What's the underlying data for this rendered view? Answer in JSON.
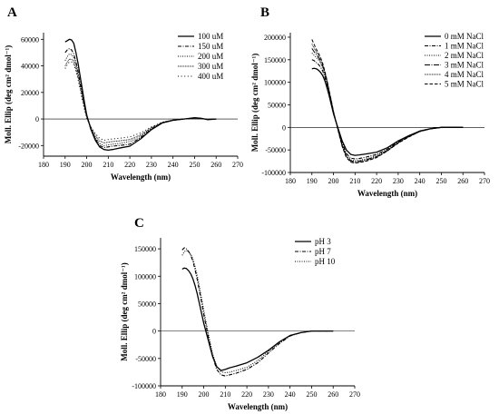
{
  "chart_data": [
    {
      "panel": "A",
      "type": "line",
      "xlabel": "Wavelength (nm)",
      "ylabel": "Moll. Ellip (deg cm² dmol⁻¹)",
      "xlim": [
        180,
        270
      ],
      "ylim": [
        -28000,
        65000
      ],
      "xticks": [
        180,
        190,
        200,
        210,
        220,
        230,
        240,
        250,
        260,
        270
      ],
      "yticks": [
        -20000,
        0,
        20000,
        40000,
        60000
      ],
      "legend_position": "top-right",
      "series": [
        {
          "name": "100 uM",
          "style": "solid",
          "x": [
            190,
            191,
            192,
            193,
            194,
            195,
            196,
            197,
            198,
            199,
            200,
            202,
            204,
            206,
            208,
            210,
            212,
            215,
            220,
            225,
            230,
            235,
            240,
            245,
            250,
            253,
            256,
            260
          ],
          "y": [
            58000,
            59000,
            60000,
            59500,
            57000,
            50000,
            42000,
            32000,
            22000,
            12000,
            3000,
            -8000,
            -16000,
            -21000,
            -23000,
            -23500,
            -23000,
            -22000,
            -20500,
            -15000,
            -8000,
            -3000,
            -1000,
            0,
            1000,
            500,
            -500,
            0
          ]
        },
        {
          "name": "150 uM",
          "style": "dashdot",
          "x": [
            190,
            191,
            192,
            193,
            194,
            195,
            196,
            197,
            198,
            199,
            200,
            202,
            204,
            206,
            208,
            210,
            212,
            215,
            220,
            225,
            230,
            235,
            240,
            245,
            250,
            253,
            256,
            260
          ],
          "y": [
            50000,
            52000,
            53000,
            52000,
            49000,
            43000,
            36000,
            27000,
            19000,
            10000,
            2000,
            -8000,
            -15000,
            -20000,
            -21500,
            -21000,
            -20500,
            -20000,
            -19000,
            -14000,
            -7500,
            -3000,
            -1000,
            0,
            700,
            400,
            -300,
            0
          ]
        },
        {
          "name": "200 uM",
          "style": "dotted",
          "x": [
            190,
            191,
            192,
            193,
            194,
            195,
            196,
            197,
            198,
            199,
            200,
            202,
            204,
            206,
            208,
            210,
            212,
            215,
            220,
            225,
            230,
            235,
            240,
            245,
            250,
            253,
            256,
            260
          ],
          "y": [
            44000,
            47000,
            49000,
            48500,
            46000,
            41000,
            34000,
            26000,
            18000,
            9500,
            2000,
            -7000,
            -14000,
            -18500,
            -20000,
            -19500,
            -19000,
            -18500,
            -17000,
            -13000,
            -7000,
            -3000,
            -1000,
            0,
            600,
            300,
            -300,
            0
          ]
        },
        {
          "name": "300 uM",
          "style": "densedot",
          "x": [
            190,
            191,
            192,
            193,
            194,
            195,
            196,
            197,
            198,
            199,
            200,
            202,
            204,
            206,
            208,
            210,
            212,
            215,
            220,
            225,
            230,
            235,
            240,
            245,
            250,
            253,
            256,
            260
          ],
          "y": [
            40000,
            43000,
            45000,
            45000,
            43000,
            38000,
            32000,
            24000,
            16000,
            8500,
            1500,
            -6500,
            -12500,
            -16500,
            -18000,
            -17500,
            -17000,
            -16500,
            -15500,
            -12000,
            -6500,
            -2500,
            -800,
            0,
            500,
            300,
            -200,
            0
          ]
        },
        {
          "name": "400 uM",
          "style": "sparsedot",
          "x": [
            190,
            191,
            192,
            193,
            194,
            195,
            196,
            197,
            198,
            199,
            200,
            202,
            204,
            206,
            208,
            210,
            212,
            215,
            220,
            225,
            230,
            235,
            240,
            245,
            250,
            253,
            256,
            260
          ],
          "y": [
            38000,
            41000,
            43000,
            43000,
            41000,
            36000,
            30000,
            22000,
            14000,
            7000,
            500,
            -6000,
            -11000,
            -14500,
            -16000,
            -15500,
            -15000,
            -14500,
            -13500,
            -10500,
            -6000,
            -2500,
            -800,
            0,
            400,
            200,
            -200,
            0
          ]
        }
      ]
    },
    {
      "panel": "B",
      "type": "line",
      "xlabel": "Wavelength (nm)",
      "ylabel": "Moll. Ellip (deg cm² dmol⁻¹)",
      "xlim": [
        180,
        270
      ],
      "ylim": [
        -100000,
        210000
      ],
      "xticks": [
        180,
        190,
        200,
        210,
        220,
        230,
        240,
        250,
        260,
        270
      ],
      "yticks": [
        -100000,
        -50000,
        0,
        50000,
        100000,
        150000,
        200000
      ],
      "legend_position": "top-right",
      "series": [
        {
          "name": "0 mM NaCl",
          "style": "solid",
          "x": [
            190,
            191,
            192,
            193,
            194,
            195,
            196,
            197,
            198,
            199,
            200,
            202,
            204,
            206,
            208,
            210,
            212,
            215,
            220,
            225,
            230,
            235,
            240,
            245,
            250,
            255,
            260
          ],
          "y": [
            130000,
            131000,
            130000,
            127000,
            122000,
            115000,
            104000,
            88000,
            70000,
            50000,
            30000,
            0,
            -30000,
            -50000,
            -60000,
            -62000,
            -61000,
            -59000,
            -55000,
            -45000,
            -30000,
            -18000,
            -8000,
            -3000,
            0,
            0,
            0
          ]
        },
        {
          "name": "1 mM NaCl",
          "style": "dashdot",
          "x": [
            190,
            191,
            192,
            193,
            194,
            195,
            196,
            197,
            198,
            199,
            200,
            202,
            204,
            206,
            208,
            210,
            212,
            215,
            220,
            225,
            230,
            235,
            240,
            245,
            250,
            255,
            260
          ],
          "y": [
            150000,
            148000,
            144000,
            140000,
            134000,
            125000,
            112000,
            95000,
            75000,
            53000,
            32000,
            -2000,
            -35000,
            -58000,
            -68000,
            -70000,
            -69000,
            -66000,
            -60000,
            -48000,
            -32000,
            -19000,
            -9000,
            -3000,
            0,
            0,
            0
          ]
        },
        {
          "name": "2 mM NaCl",
          "style": "dotted",
          "x": [
            190,
            191,
            192,
            193,
            194,
            195,
            196,
            197,
            198,
            199,
            200,
            202,
            204,
            206,
            208,
            210,
            212,
            215,
            220,
            225,
            230,
            235,
            240,
            245,
            250,
            255,
            260
          ],
          "y": [
            165000,
            160000,
            155000,
            150000,
            143000,
            133000,
            119000,
            100000,
            79000,
            56000,
            33000,
            -3000,
            -38000,
            -62000,
            -72000,
            -74000,
            -73000,
            -70000,
            -63000,
            -50000,
            -33000,
            -20000,
            -9000,
            -3000,
            0,
            0,
            0
          ]
        },
        {
          "name": "3 mM NaCl",
          "style": "longdashdot",
          "x": [
            190,
            191,
            192,
            193,
            194,
            195,
            196,
            197,
            198,
            199,
            200,
            202,
            204,
            206,
            208,
            210,
            212,
            215,
            220,
            225,
            230,
            235,
            240,
            245,
            250,
            255,
            260
          ],
          "y": [
            175000,
            168000,
            162000,
            155000,
            147000,
            136000,
            121000,
            102000,
            80000,
            57000,
            34000,
            -3000,
            -40000,
            -64000,
            -74000,
            -76000,
            -75000,
            -72000,
            -65000,
            -51000,
            -34000,
            -20000,
            -9000,
            -3000,
            0,
            0,
            0
          ]
        },
        {
          "name": "4 mM NaCl",
          "style": "densedot",
          "x": [
            190,
            191,
            192,
            193,
            194,
            195,
            196,
            197,
            198,
            199,
            200,
            202,
            204,
            206,
            208,
            210,
            212,
            215,
            220,
            225,
            230,
            235,
            240,
            245,
            250,
            255,
            260
          ],
          "y": [
            185000,
            176000,
            168000,
            160000,
            151000,
            139000,
            123000,
            103000,
            81000,
            58000,
            35000,
            -3000,
            -41000,
            -66000,
            -76000,
            -78000,
            -77000,
            -74000,
            -66000,
            -52000,
            -34000,
            -20000,
            -9000,
            -3000,
            0,
            0,
            0
          ]
        },
        {
          "name": "5 mM NaCl",
          "style": "dashed",
          "x": [
            190,
            191,
            192,
            193,
            194,
            195,
            196,
            197,
            198,
            199,
            200,
            202,
            204,
            206,
            208,
            210,
            212,
            215,
            220,
            225,
            230,
            235,
            240,
            245,
            250,
            255,
            260
          ],
          "y": [
            195000,
            184000,
            174000,
            165000,
            155000,
            142000,
            125000,
            105000,
            82000,
            59000,
            35000,
            -4000,
            -42000,
            -67000,
            -77000,
            -79000,
            -78000,
            -75000,
            -67000,
            -52000,
            -35000,
            -21000,
            -9000,
            -3000,
            0,
            0,
            0
          ]
        }
      ]
    },
    {
      "panel": "C",
      "type": "line",
      "xlabel": "Wavelength (nm)",
      "ylabel": "Moll. Ellip (deg cm² dmol⁻¹)",
      "xlim": [
        180,
        270
      ],
      "ylim": [
        -100000,
        170000
      ],
      "xticks": [
        180,
        190,
        200,
        210,
        220,
        230,
        240,
        250,
        260,
        270
      ],
      "yticks": [
        -100000,
        -50000,
        0,
        50000,
        100000,
        150000
      ],
      "legend_position": "top-right",
      "series": [
        {
          "name": "pH 3",
          "style": "solid",
          "x": [
            190,
            191,
            192,
            193,
            194,
            195,
            196,
            197,
            198,
            199,
            200,
            202,
            204,
            206,
            208,
            210,
            212,
            215,
            220,
            225,
            230,
            235,
            240,
            245,
            250,
            255,
            260
          ],
          "y": [
            113000,
            115000,
            114000,
            110000,
            104000,
            95000,
            83000,
            68000,
            50000,
            32000,
            14000,
            -15000,
            -45000,
            -65000,
            -72000,
            -70000,
            -67000,
            -64000,
            -58000,
            -48000,
            -35000,
            -20000,
            -8000,
            -3000,
            0,
            0,
            0
          ]
        },
        {
          "name": "pH 7",
          "style": "dashdot",
          "x": [
            190,
            191,
            192,
            193,
            194,
            195,
            196,
            197,
            198,
            199,
            200,
            202,
            204,
            206,
            208,
            210,
            212,
            215,
            220,
            225,
            230,
            235,
            240,
            245,
            250,
            255,
            260
          ],
          "y": [
            148000,
            152000,
            150000,
            145000,
            138000,
            127000,
            112000,
            94000,
            73000,
            52000,
            30000,
            -8000,
            -45000,
            -70000,
            -80000,
            -82000,
            -80000,
            -77000,
            -70000,
            -58000,
            -40000,
            -23000,
            -9000,
            -3000,
            0,
            0,
            0
          ]
        },
        {
          "name": "pH 10",
          "style": "dotted",
          "x": [
            190,
            191,
            192,
            193,
            194,
            195,
            196,
            197,
            198,
            199,
            200,
            202,
            204,
            206,
            208,
            210,
            212,
            215,
            220,
            225,
            230,
            235,
            240,
            245,
            250,
            255,
            260
          ],
          "y": [
            138000,
            145000,
            147000,
            145000,
            140000,
            131000,
            118000,
            101000,
            81000,
            60000,
            38000,
            -2000,
            -40000,
            -64000,
            -74000,
            -76000,
            -75000,
            -72000,
            -66000,
            -54000,
            -37000,
            -21000,
            -8000,
            -3000,
            0,
            0,
            0
          ]
        }
      ]
    }
  ]
}
